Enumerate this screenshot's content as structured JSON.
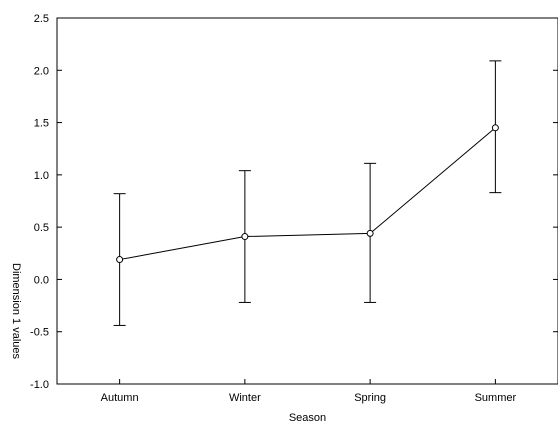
{
  "chart_data": {
    "type": "line",
    "title": "",
    "xlabel": "Season",
    "ylabel": "Dimension 1 values",
    "categories": [
      "Autumn",
      "Winter",
      "Spring",
      "Summer"
    ],
    "series": [
      {
        "values": [
          0.19,
          0.41,
          0.44,
          1.45
        ],
        "error_low": [
          -0.44,
          -0.22,
          -0.22,
          0.83
        ],
        "error_high": [
          0.82,
          1.04,
          1.11,
          2.09
        ]
      }
    ],
    "ylim": [
      -1.0,
      2.5
    ],
    "yticks": [
      "2.5",
      "2.0",
      "1.5",
      "1.0",
      "0.5",
      "0.0",
      "-0.5",
      "-1.0"
    ],
    "ytick_values": [
      2.5,
      2.0,
      1.5,
      1.0,
      0.5,
      0.0,
      -0.5,
      -1.0
    ],
    "grid": false,
    "legend": "none",
    "marker": "open-circle",
    "colors": {
      "line": "#000000",
      "marker_fill": "#ffffff"
    }
  }
}
